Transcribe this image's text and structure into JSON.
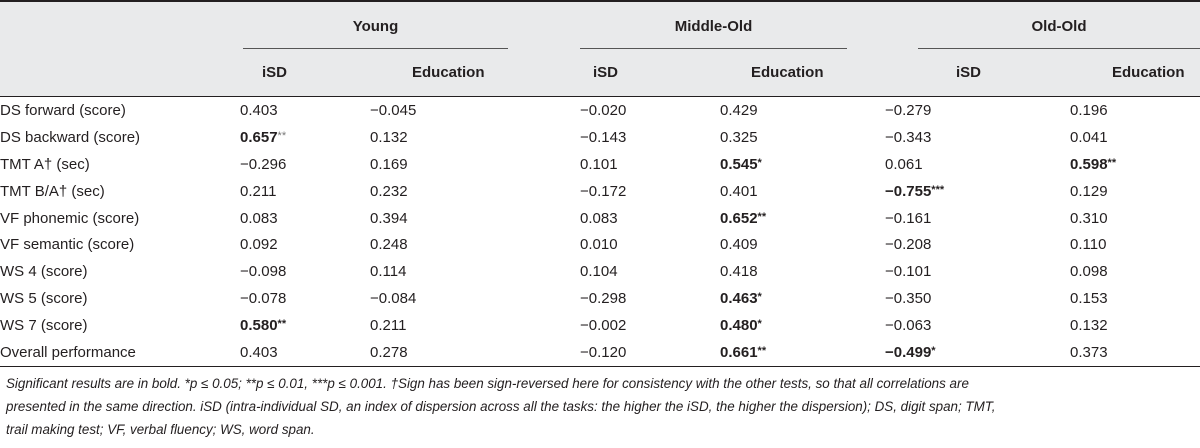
{
  "groups": [
    {
      "name": "Young"
    },
    {
      "name": "Middle-Old"
    },
    {
      "name": "Old-Old"
    }
  ],
  "subheaders": [
    "iSD",
    "Education",
    "iSD",
    "Education",
    "iSD",
    "Education"
  ],
  "rows": [
    {
      "label": "DS forward (score)",
      "cells": [
        {
          "v": "0.403"
        },
        {
          "v": "−0.045"
        },
        {
          "v": "−0.020"
        },
        {
          "v": "0.429"
        },
        {
          "v": "−0.279"
        },
        {
          "v": "0.196"
        }
      ]
    },
    {
      "label": "DS backward (score)",
      "cells": [
        {
          "v": "0.657",
          "b": true,
          "s": "**",
          "sb": false
        },
        {
          "v": "0.132"
        },
        {
          "v": "−0.143"
        },
        {
          "v": "0.325"
        },
        {
          "v": "−0.343"
        },
        {
          "v": "0.041"
        }
      ]
    },
    {
      "label": "TMT A† (sec)",
      "cells": [
        {
          "v": "−0.296"
        },
        {
          "v": "0.169"
        },
        {
          "v": "0.101"
        },
        {
          "v": "0.545",
          "b": true,
          "s": "*",
          "sb": true
        },
        {
          "v": "0.061"
        },
        {
          "v": "0.598",
          "b": true,
          "s": "**",
          "sb": true
        }
      ]
    },
    {
      "label": "TMT B/A† (sec)",
      "cells": [
        {
          "v": "0.211"
        },
        {
          "v": "0.232"
        },
        {
          "v": "−0.172"
        },
        {
          "v": "0.401"
        },
        {
          "v": "−0.755",
          "b": true,
          "s": "***",
          "sb": true
        },
        {
          "v": "0.129"
        }
      ]
    },
    {
      "label": "VF phonemic (score)",
      "cells": [
        {
          "v": "0.083"
        },
        {
          "v": "0.394"
        },
        {
          "v": "0.083"
        },
        {
          "v": "0.652",
          "b": true,
          "s": "**",
          "sb": true
        },
        {
          "v": "−0.161"
        },
        {
          "v": "0.310"
        }
      ]
    },
    {
      "label": "VF semantic (score)",
      "cells": [
        {
          "v": "0.092"
        },
        {
          "v": "0.248"
        },
        {
          "v": "0.010"
        },
        {
          "v": "0.409"
        },
        {
          "v": "−0.208"
        },
        {
          "v": "0.110"
        }
      ]
    },
    {
      "label": "WS 4 (score)",
      "cells": [
        {
          "v": "−0.098"
        },
        {
          "v": "0.114"
        },
        {
          "v": "0.104"
        },
        {
          "v": "0.418"
        },
        {
          "v": "−0.101"
        },
        {
          "v": "0.098"
        }
      ]
    },
    {
      "label": "WS 5 (score)",
      "cells": [
        {
          "v": "−0.078"
        },
        {
          "v": "−0.084"
        },
        {
          "v": "−0.298"
        },
        {
          "v": "0.463",
          "b": true,
          "s": "*",
          "sb": true
        },
        {
          "v": "−0.350"
        },
        {
          "v": "0.153"
        }
      ]
    },
    {
      "label": "WS 7 (score)",
      "cells": [
        {
          "v": "0.580",
          "b": true,
          "s": "**",
          "sb": true
        },
        {
          "v": "0.211"
        },
        {
          "v": "−0.002"
        },
        {
          "v": "0.480",
          "b": true,
          "s": "*",
          "sb": true
        },
        {
          "v": "−0.063"
        },
        {
          "v": "0.132"
        }
      ]
    },
    {
      "label": "Overall performance",
      "cells": [
        {
          "v": "0.403"
        },
        {
          "v": "0.278"
        },
        {
          "v": "−0.120"
        },
        {
          "v": "0.661",
          "b": true,
          "s": "**",
          "sb": true
        },
        {
          "v": "−0.499",
          "b": true,
          "s": "*",
          "sb": true
        },
        {
          "v": "0.373"
        }
      ]
    }
  ],
  "footnote": {
    "line1": "Significant results are in bold. *p ≤ 0.05; **p ≤ 0.01, ***p ≤ 0.001. †Sign has been sign-reversed here for consistency with the other tests, so that all correlations are",
    "line2": "presented in the same direction. iSD (intra-individual SD, an index of dispersion across all the tasks: the higher the iSD, the higher the dispersion); DS, digit span; TMT,",
    "line3": "trail making test; VF, verbal fluency; WS, word span."
  }
}
